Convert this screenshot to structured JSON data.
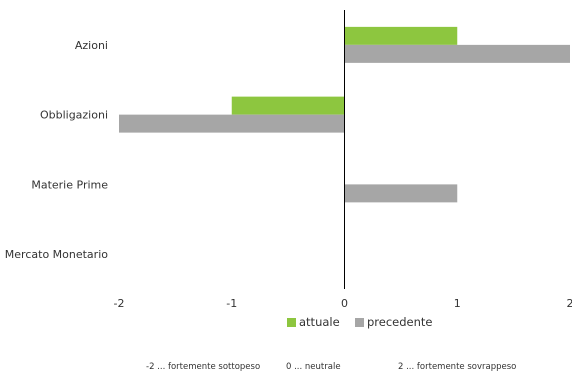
{
  "chart_data": {
    "type": "bar",
    "orientation": "horizontal",
    "categories": [
      "Azioni",
      "Obbligazioni",
      "Materie Prime",
      "Mercato Monetario"
    ],
    "series": [
      {
        "name": "attuale",
        "color": "#8dc63f",
        "values": [
          1,
          -1,
          0,
          0
        ]
      },
      {
        "name": "precedente",
        "color": "#a6a6a6",
        "values": [
          2,
          -2,
          1,
          0
        ]
      }
    ],
    "xlim": [
      -2,
      2
    ],
    "xticks": [
      -2,
      -1,
      0,
      1,
      2
    ],
    "grid": false,
    "legend": "bottom-center",
    "footnotes": [
      "-2 ... fortemente sottopeso",
      "0 ... neutrale",
      "2 ... fortemente sovrappeso"
    ]
  }
}
